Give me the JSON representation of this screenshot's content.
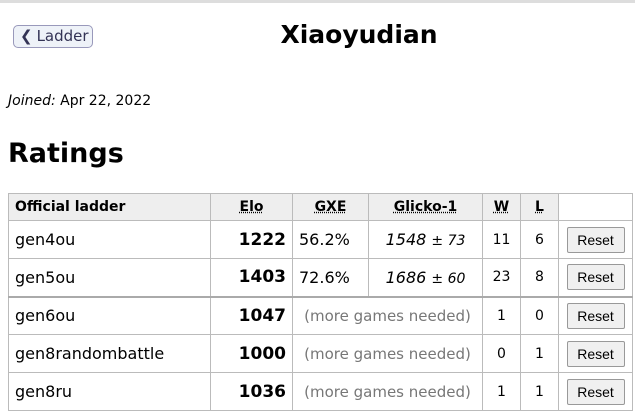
{
  "back_button": {
    "label": "Ladder",
    "icon": "chevron-left-icon"
  },
  "user": {
    "name": "Xiaoyudian",
    "joined_label": "Joined:",
    "joined_date": "Apr 22, 2022"
  },
  "ratings_heading": "Ratings",
  "table": {
    "headers": [
      "Official ladder",
      "Elo",
      "GXE",
      "Glicko-1",
      "W",
      "L"
    ],
    "rows": [
      {
        "format": "gen4ou",
        "elo": "1222",
        "gxe": "56.2%",
        "glicko": "1548",
        "dev": "± 73",
        "w": "11",
        "l": "6",
        "reset": "Reset"
      },
      {
        "format": "gen5ou",
        "elo": "1403",
        "gxe": "72.6%",
        "glicko": "1686",
        "dev": "± 60",
        "w": "23",
        "l": "8",
        "reset": "Reset"
      },
      {
        "format": "gen6ou",
        "elo": "1047",
        "note": "(more games needed)",
        "w": "1",
        "l": "0",
        "reset": "Reset"
      },
      {
        "format": "gen8randombattle",
        "elo": "1000",
        "note": "(more games needed)",
        "w": "0",
        "l": "1",
        "reset": "Reset"
      },
      {
        "format": "gen8ru",
        "elo": "1036",
        "note": "(more games needed)",
        "w": "1",
        "l": "1",
        "reset": "Reset"
      }
    ]
  }
}
